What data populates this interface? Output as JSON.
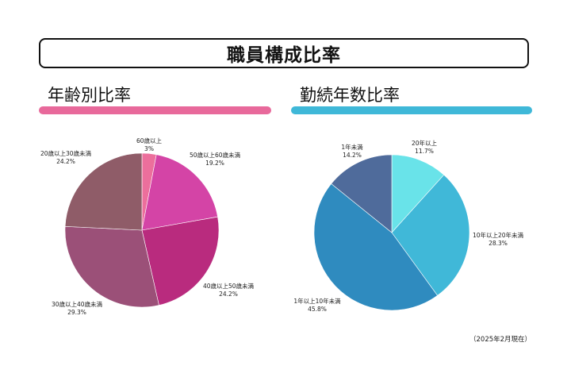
{
  "header": {
    "title": "職員構成比率"
  },
  "sections": {
    "age": {
      "title": "年齢別比率",
      "bar_color": "#e8699b"
    },
    "tenure": {
      "title": "勤続年数比率",
      "bar_color": "#3fb8d8"
    }
  },
  "footnote": "（2025年2月現在）",
  "chart_data": [
    {
      "type": "pie",
      "title": "年齢別比率",
      "categories": [
        "60歳以上",
        "50歳以上60歳未満",
        "40歳以上50歳未満",
        "30歳以上40歳未満",
        "20歳以上30歳未満"
      ],
      "percent_labels": [
        "3%",
        "19.2%",
        "24.2%",
        "29.3%",
        "24.2%"
      ],
      "values": [
        3,
        19.2,
        24.2,
        29.3,
        24.2
      ],
      "colors": [
        "#ec6f9c",
        "#d444a6",
        "#b92b7e",
        "#9b5078",
        "#8f5c68"
      ]
    },
    {
      "type": "pie",
      "title": "勤続年数比率",
      "categories": [
        "20年以上",
        "10年以上20年未満",
        "1年以上10年未満",
        "1年未満"
      ],
      "percent_labels": [
        "11.7%",
        "28.3%",
        "45.8%",
        "14.2%"
      ],
      "values": [
        11.7,
        28.3,
        45.8,
        14.2
      ],
      "colors": [
        "#69e3e9",
        "#40b8d8",
        "#2f8bbf",
        "#4f6b9b"
      ]
    }
  ]
}
